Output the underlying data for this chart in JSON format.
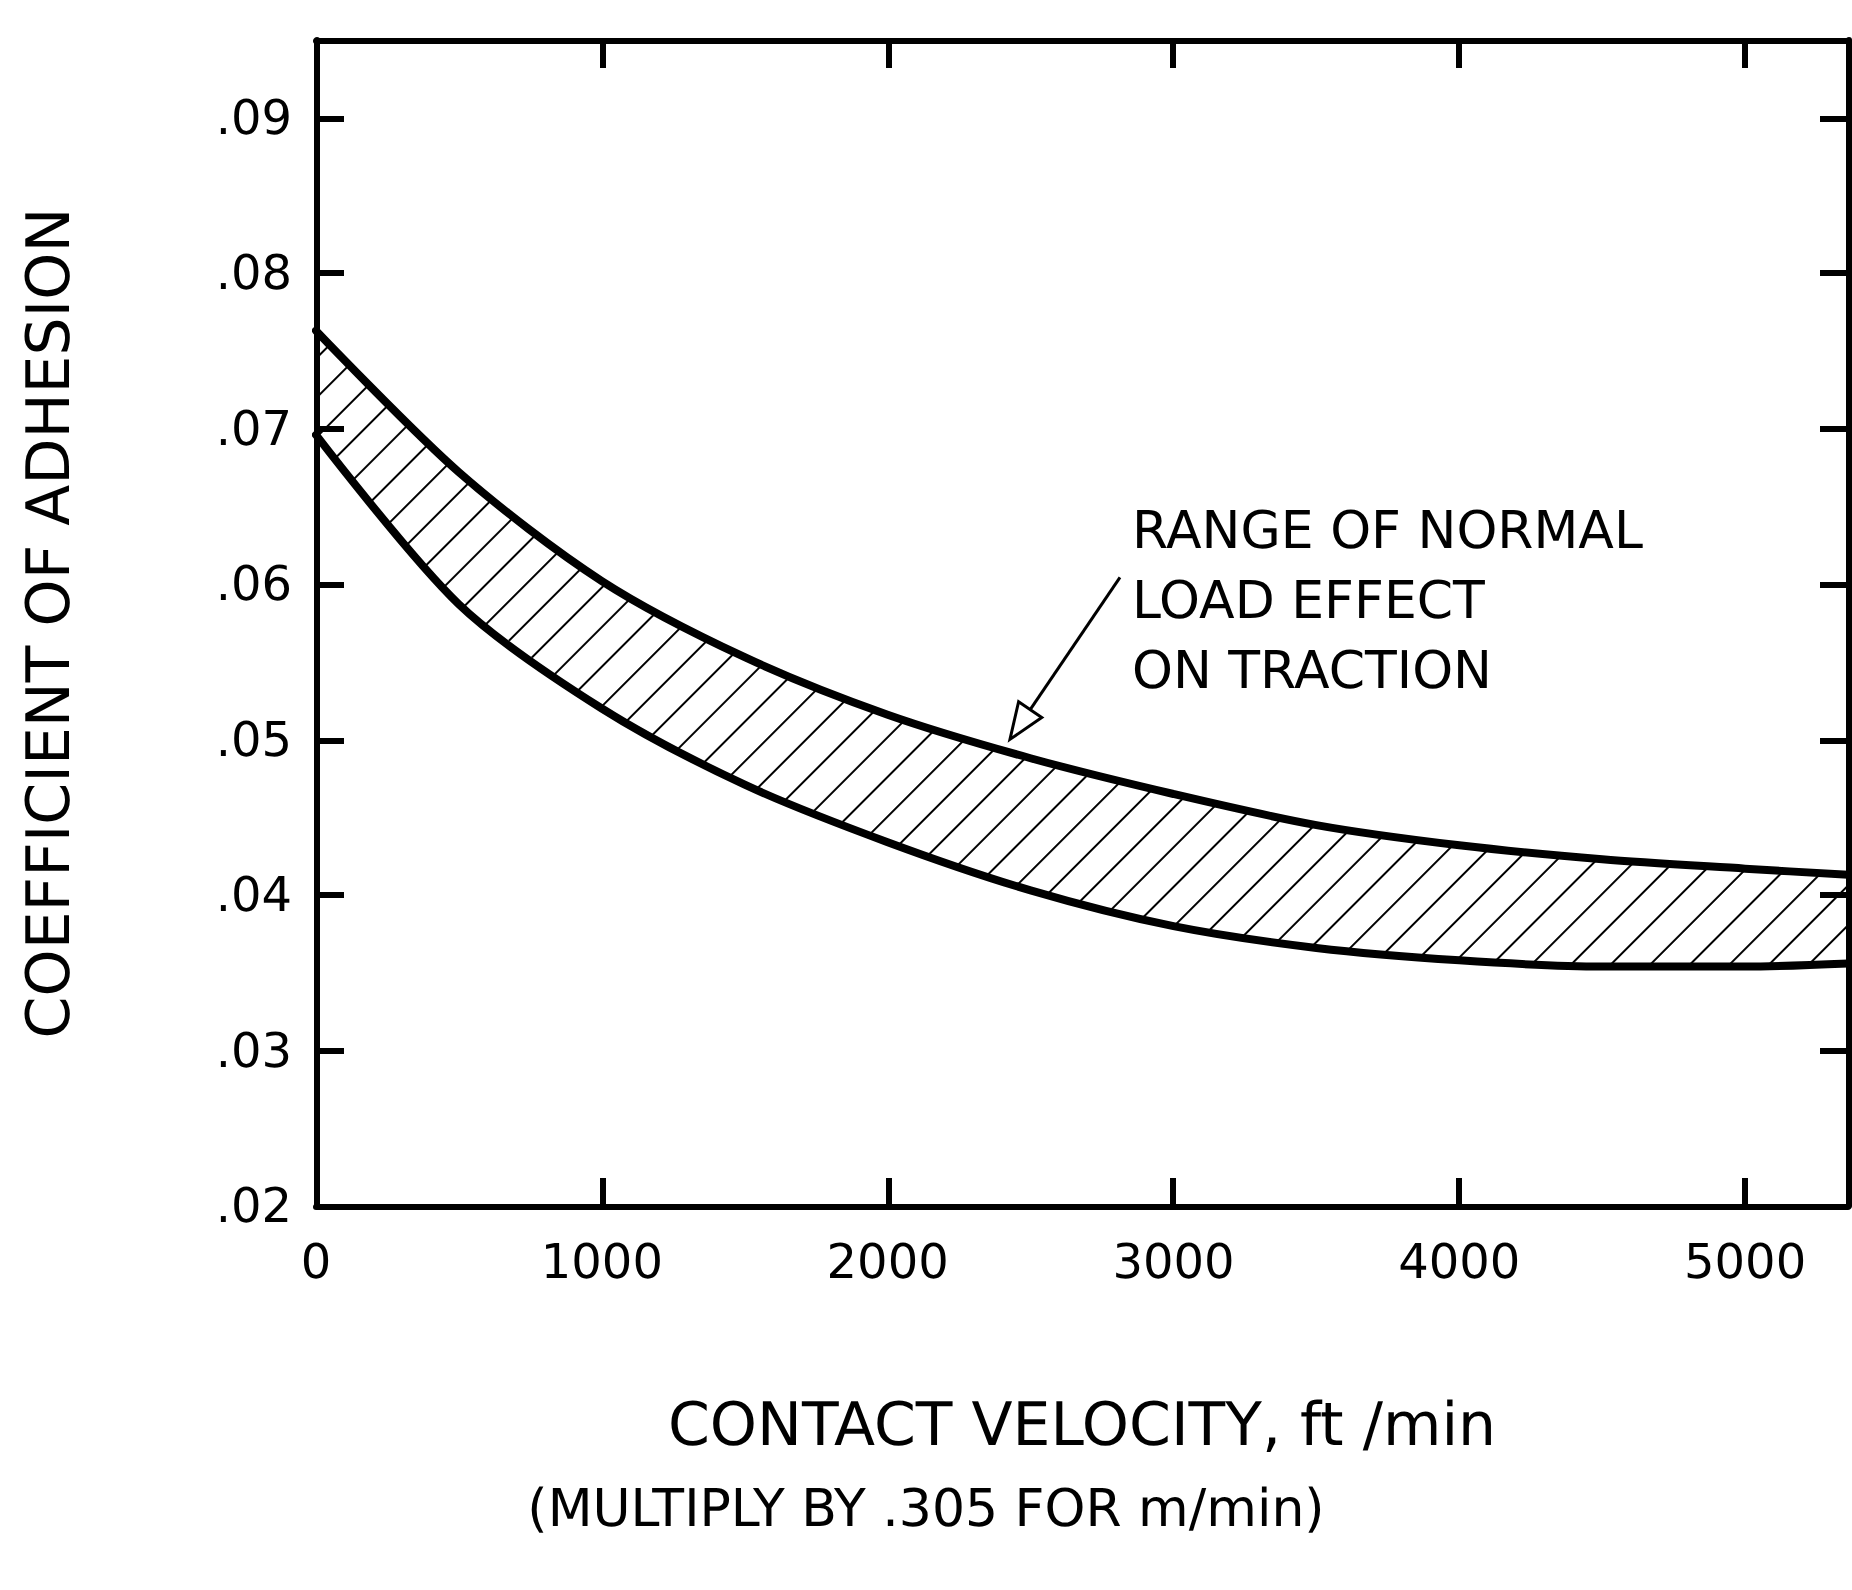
{
  "chart_data": {
    "type": "line",
    "xlabel": "CONTACT VELOCITY, ft /min",
    "ylabel": "COEFFICIENT OF ADHESION",
    "x": [
      0,
      500,
      1000,
      1500,
      2000,
      2500,
      3000,
      3500,
      4000,
      4500,
      5000,
      5360
    ],
    "series": [
      {
        "color": "#000000",
        "values": [
          0.0696,
          0.0587,
          0.052,
          0.0471,
          0.0434,
          0.0403,
          0.038,
          0.0366,
          0.0358,
          0.0354,
          0.0354,
          0.0356
        ]
      },
      {
        "color": "#000000",
        "values": [
          0.0763,
          0.0672,
          0.0602,
          0.0553,
          0.0516,
          0.0488,
          0.0465,
          0.0445,
          0.0432,
          0.0423,
          0.0417,
          0.0413
        ]
      }
    ],
    "xlim": [
      0,
      5360
    ],
    "xticks": [
      0,
      1000,
      2000,
      3000,
      4000,
      5000
    ],
    "ylim": [
      0.02,
      0.095
    ],
    "yticks": [
      {
        "value": 0.02,
        "label": ".02"
      },
      {
        "value": 0.03,
        "label": ".03"
      },
      {
        "value": 0.04,
        "label": ".04"
      },
      {
        "value": 0.05,
        "label": ".05"
      },
      {
        "value": 0.06,
        "label": ".06"
      },
      {
        "value": 0.07,
        "label": ".07"
      },
      {
        "value": 0.08,
        "label": ".08"
      },
      {
        "value": 0.09,
        "label": ".09"
      }
    ],
    "annotations": [
      {
        "text": "RANGE OF NORMAL\nLOAD EFFECT\nON TRACTION",
        "x": 2400,
        "y": 0.0495
      },
      "(MULTIPLY BY .305 FOR m/min)"
    ],
    "grid": false,
    "marker": "none",
    "line_style": "solid"
  }
}
